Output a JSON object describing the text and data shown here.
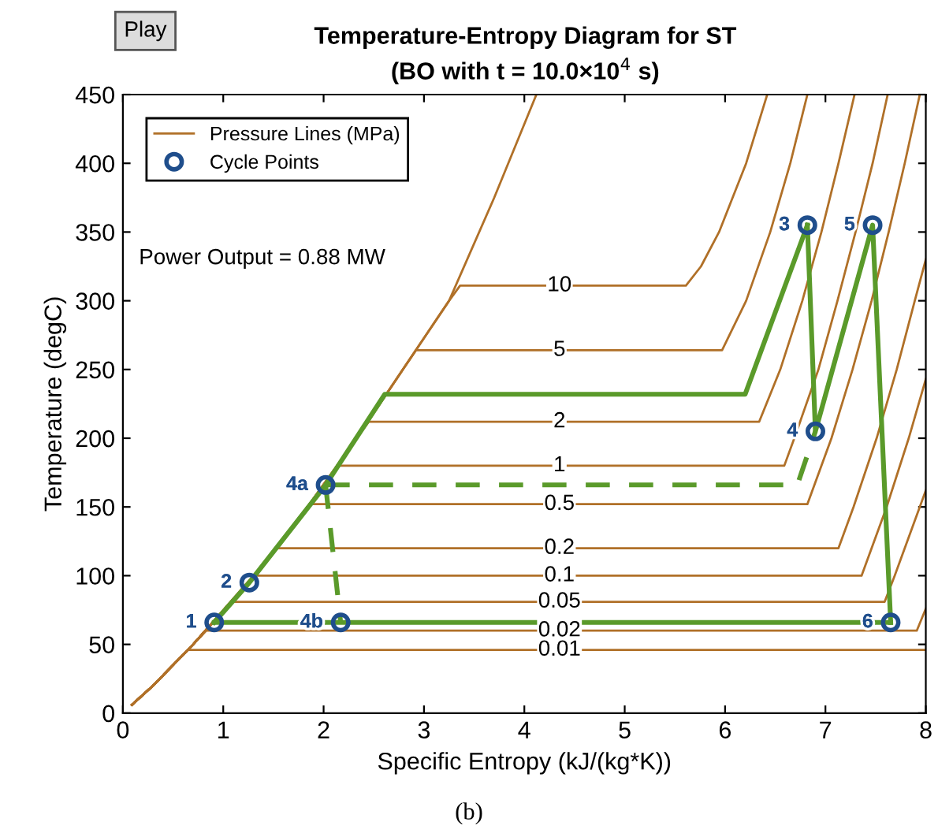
{
  "chart_data": {
    "type": "line",
    "title": "Temperature-Entropy Diagram for ST",
    "subtitle": "(BO with t = 10.0×10$^{4}$ s)",
    "xlabel": "Specific Entropy (kJ/(kg*K))",
    "ylabel": "Temperature (degC)",
    "xlim": [
      0,
      8
    ],
    "ylim": [
      0,
      450
    ],
    "xticks": [
      0,
      1,
      2,
      3,
      4,
      5,
      6,
      7,
      8
    ],
    "yticks": [
      0,
      50,
      100,
      150,
      200,
      250,
      300,
      350,
      400,
      450
    ],
    "grid": false,
    "legend": "top left",
    "series": [
      {
        "name": "Pressure Lines (MPa)",
        "type": "line",
        "color": "#b07028",
        "x": [
          0.09,
          0.3,
          0.7,
          1.31,
          1.84,
          2.33,
          2.79,
          3.25,
          3.36,
          5.61,
          5.76,
          5.94,
          6.21,
          6.42
        ],
        "values": [
          6,
          20,
          50,
          100,
          150,
          200,
          250,
          300,
          311,
          311,
          325,
          350,
          400,
          450
        ]
      },
      {
        "type": "line",
        "color": "#b07028",
        "x": [
          0.09,
          0.3,
          0.7,
          1.31,
          1.84,
          2.33,
          2.79,
          3.25,
          3.7,
          4.12
        ],
        "values": [
          6,
          20,
          50,
          100,
          150,
          200,
          250,
          300,
          375,
          450
        ]
      },
      {
        "type": "line",
        "color": "#b07028",
        "x": [
          0.09,
          0.3,
          0.7,
          1.31,
          1.84,
          2.33,
          2.79,
          2.92,
          5.97,
          6.21,
          6.45,
          6.65,
          6.82
        ],
        "values": [
          6,
          20,
          50,
          100,
          150,
          200,
          250,
          264,
          264,
          300,
          350,
          400,
          450
        ]
      },
      {
        "type": "line",
        "color": "#b07028",
        "x": [
          0.09,
          0.3,
          0.7,
          1.31,
          1.84,
          2.33,
          2.45,
          6.34,
          6.55,
          6.77,
          6.96,
          7.13,
          7.29
        ],
        "values": [
          6,
          20,
          50,
          100,
          150,
          200,
          212,
          212,
          250,
          300,
          350,
          400,
          450
        ]
      },
      {
        "type": "line",
        "color": "#b07028",
        "x": [
          0.09,
          0.3,
          0.7,
          1.31,
          1.84,
          2.14,
          6.59,
          6.69,
          6.93,
          7.12,
          7.3,
          7.47,
          7.62
        ],
        "values": [
          6,
          20,
          50,
          100,
          150,
          180,
          180,
          200,
          250,
          300,
          350,
          400,
          450
        ]
      },
      {
        "type": "line",
        "color": "#b07028",
        "x": [
          0.09,
          0.3,
          0.7,
          1.31,
          1.86,
          6.82,
          7.06,
          7.27,
          7.46,
          7.63,
          7.79,
          7.94
        ],
        "values": [
          6,
          20,
          50,
          100,
          152,
          152,
          200,
          250,
          300,
          350,
          400,
          450
        ]
      },
      {
        "type": "line",
        "color": "#b07028",
        "x": [
          0.09,
          0.3,
          0.7,
          1.31,
          1.53,
          7.13,
          7.28,
          7.51,
          7.71,
          7.89,
          8.0
        ],
        "values": [
          6,
          20,
          50,
          100,
          120,
          120,
          150,
          200,
          250,
          300,
          330
        ]
      },
      {
        "type": "line",
        "color": "#b07028",
        "x": [
          0.09,
          0.3,
          0.7,
          1.3,
          7.36,
          7.61,
          7.83,
          8.0
        ],
        "values": [
          6,
          20,
          50,
          100,
          100,
          150,
          200,
          243
        ]
      },
      {
        "type": "line",
        "color": "#b07028",
        "x": [
          0.09,
          0.3,
          0.7,
          1.09,
          7.59,
          7.69,
          7.94,
          8.0
        ],
        "values": [
          6,
          20,
          50,
          81,
          81,
          100,
          150,
          162
        ]
      },
      {
        "type": "line",
        "color": "#b07028",
        "x": [
          0.09,
          0.3,
          0.7,
          0.83,
          7.91,
          8.0
        ],
        "values": [
          6,
          20,
          50,
          60,
          60,
          76
        ]
      },
      {
        "type": "line",
        "color": "#b07028",
        "x": [
          0.09,
          0.3,
          0.65,
          8.0
        ],
        "values": [
          6,
          20,
          46,
          46
        ]
      },
      {
        "color": "#5a9a2a",
        "line_style": "solid",
        "x": [
          0.91,
          1.26,
          2.02,
          2.61,
          6.2,
          6.82
        ],
        "values": [
          66,
          95,
          166,
          232,
          232,
          355
        ]
      },
      {
        "color": "#5a9a2a",
        "line_style": "solid",
        "x": [
          6.82,
          6.9,
          7.47,
          7.65
        ],
        "values": [
          355,
          205,
          355,
          66
        ]
      },
      {
        "color": "#5a9a2a",
        "line_style": "solid",
        "x": [
          0.91,
          7.65
        ],
        "values": [
          66,
          66
        ]
      },
      {
        "color": "#5a9a2a",
        "line_style": "dashed",
        "x": [
          2.02,
          6.72,
          6.9
        ],
        "values": [
          166,
          166,
          205
        ]
      },
      {
        "color": "#5a9a2a",
        "line_style": "dashed",
        "x": [
          2.02,
          2.17
        ],
        "values": [
          166,
          66
        ]
      },
      {
        "name": "Cycle Points",
        "type": "scatter",
        "marker": "circle",
        "color": "#1f4e8c",
        "x": [
          0.91,
          1.26,
          6.82,
          6.9,
          7.47,
          7.65,
          2.02,
          2.17
        ],
        "values": [
          66,
          95,
          355,
          205,
          355,
          66,
          166,
          66
        ]
      }
    ],
    "annotations": [
      "Play",
      "Power Output = 0.88 MW",
      "(b)",
      {
        "text": "10",
        "x": 4.35,
        "y": 311
      },
      {
        "text": "5",
        "x": 4.35,
        "y": 264
      },
      {
        "text": "2",
        "x": 4.35,
        "y": 212
      },
      {
        "text": "1",
        "x": 4.35,
        "y": 180
      },
      {
        "text": "0.5",
        "x": 4.35,
        "y": 152
      },
      {
        "text": "0.2",
        "x": 4.35,
        "y": 120
      },
      {
        "text": "0.1",
        "x": 4.35,
        "y": 100
      },
      {
        "text": "0.05",
        "x": 4.35,
        "y": 81
      },
      {
        "text": "0.02",
        "x": 4.35,
        "y": 60
      },
      {
        "text": "0.01",
        "x": 4.35,
        "y": 46
      },
      {
        "text": "1",
        "x": 0.91,
        "y": 66
      },
      {
        "text": "2",
        "x": 1.26,
        "y": 95
      },
      {
        "text": "3",
        "x": 6.82,
        "y": 355
      },
      {
        "text": "4",
        "x": 6.9,
        "y": 205
      },
      {
        "text": "5",
        "x": 7.47,
        "y": 355
      },
      {
        "text": "6",
        "x": 7.65,
        "y": 66
      },
      {
        "text": "4a",
        "x": 2.02,
        "y": 166
      },
      {
        "text": "4b",
        "x": 2.17,
        "y": 66
      }
    ]
  }
}
